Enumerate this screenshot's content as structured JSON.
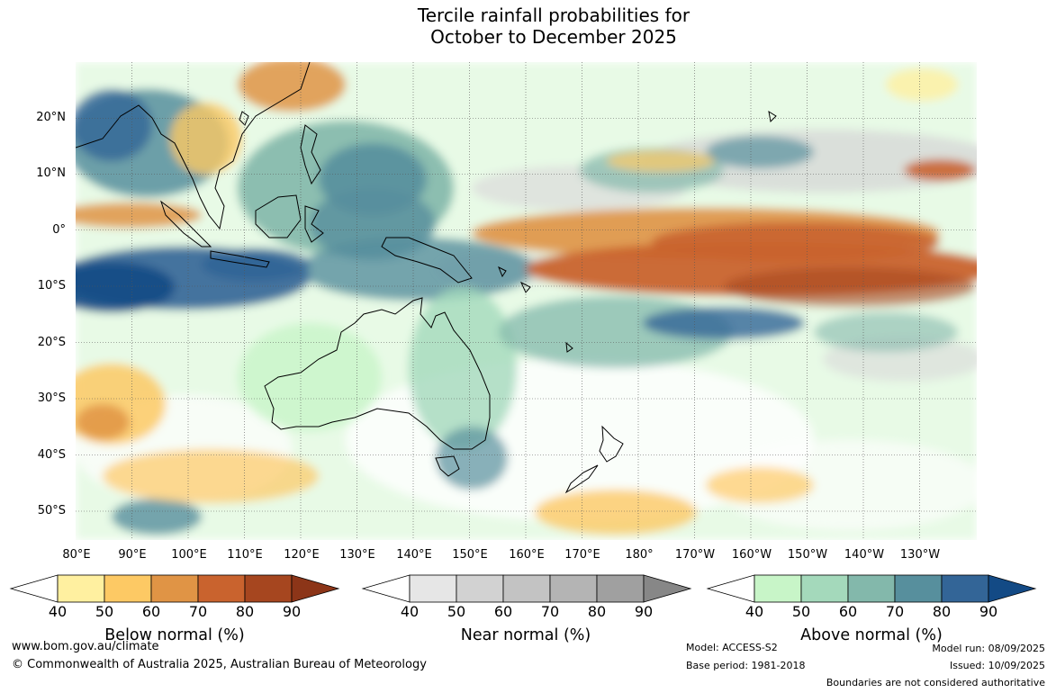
{
  "title": {
    "line1": "Tercile rainfall probabilities for",
    "line2": "October to December 2025"
  },
  "map": {
    "lat_labels": [
      "20°N",
      "10°N",
      "0°",
      "10°S",
      "20°S",
      "30°S",
      "40°S",
      "50°S"
    ],
    "lon_labels": [
      "80°E",
      "90°E",
      "100°E",
      "110°E",
      "120°E",
      "130°E",
      "140°E",
      "150°E",
      "160°E",
      "170°E",
      "180°",
      "170°W",
      "160°W",
      "150°W",
      "140°W",
      "130°W"
    ]
  },
  "colorbars": [
    {
      "title": "Below normal (%)",
      "ticks": [
        "40",
        "50",
        "60",
        "70",
        "80",
        "90"
      ],
      "colors": [
        "#ffffff",
        "#fff0a0",
        "#fdc964",
        "#e09445",
        "#c9632e",
        "#a6461f",
        "#8c3518"
      ]
    },
    {
      "title": "Near normal (%)",
      "ticks": [
        "40",
        "50",
        "60",
        "70",
        "80",
        "90"
      ],
      "colors": [
        "#ffffff",
        "#e6e6e6",
        "#d2d2d2",
        "#c3c3c3",
        "#b4b4b4",
        "#a0a0a0",
        "#878787"
      ]
    },
    {
      "title": "Above normal (%)",
      "ticks": [
        "40",
        "50",
        "60",
        "70",
        "80",
        "90"
      ],
      "colors": [
        "#ffffff",
        "#c8f5c8",
        "#a4d9bb",
        "#83b8ab",
        "#578f9d",
        "#336597",
        "#134a85"
      ]
    }
  ],
  "footer": {
    "website": "www.bom.gov.au/climate",
    "copyright": "© Commonwealth of Australia 2025, Australian Bureau of Meteorology",
    "model": "Model: ACCESS-S2",
    "base_period": "Base period: 1981-2018",
    "model_run": "Model run: 08/09/2025",
    "issued": "Issued: 10/09/2025",
    "disclaimer": "Boundaries are not considered authoritative"
  }
}
